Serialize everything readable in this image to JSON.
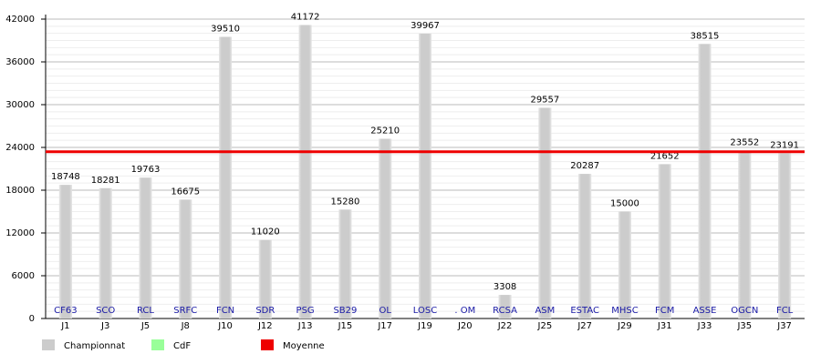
{
  "chart_data": {
    "type": "bar",
    "categories": [
      "J1",
      "J3",
      "J5",
      "J8",
      "J10",
      "J12",
      "J13",
      "J15",
      "J17",
      "J19",
      "J20",
      "J22",
      "J25",
      "J27",
      "J29",
      "J31",
      "J33",
      "J35",
      "J37"
    ],
    "team_labels": [
      "CF63",
      "SCO",
      "RCL",
      "SRFC",
      "FCN",
      "SDR",
      "PSG",
      "SB29",
      "OL",
      "LOSC",
      ". OM",
      "RCSA",
      "ASM",
      "ESTAC",
      "MHSC",
      "FCM",
      "ASSE",
      "OGCN",
      "FCL"
    ],
    "series": [
      {
        "name": "Championnat",
        "color": "#cccccc",
        "values": [
          18748,
          18281,
          19763,
          16675,
          39510,
          11020,
          41172,
          15280,
          25210,
          39967,
          null,
          3308,
          29557,
          20287,
          15000,
          21652,
          38515,
          23552,
          23191
        ]
      },
      {
        "name": "CdF",
        "color": "#99ff99",
        "values": [
          null,
          null,
          null,
          null,
          null,
          null,
          null,
          null,
          null,
          null,
          null,
          null,
          null,
          null,
          null,
          null,
          null,
          null,
          null
        ]
      }
    ],
    "average": {
      "name": "Moyenne",
      "color": "#ee0000",
      "value": 23400
    },
    "ylim": [
      0,
      42000
    ],
    "yticks": [
      0,
      6000,
      12000,
      18000,
      24000,
      30000,
      36000,
      42000
    ],
    "grid": true
  }
}
